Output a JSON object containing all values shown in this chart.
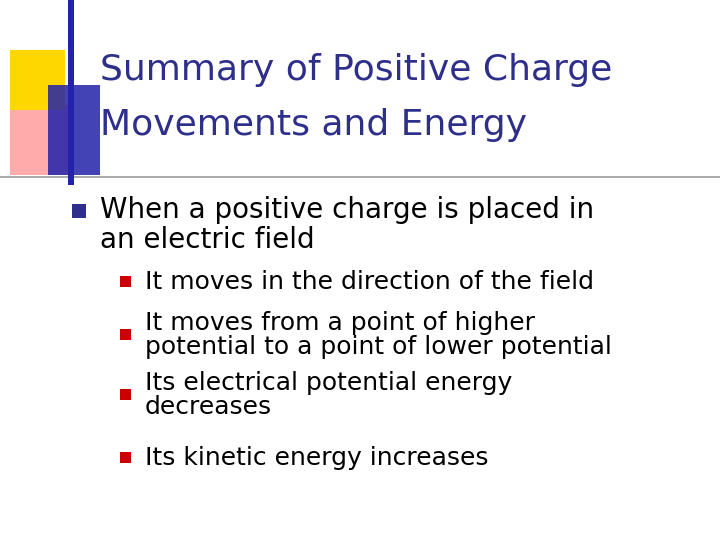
{
  "title_line1": "Summary of Positive Charge",
  "title_line2": "Movements and Energy",
  "title_color": "#2E2E8B",
  "background_color": "#FFFFFF",
  "bullet1_marker_color": "#2E2E8B",
  "bullet1_text_line1": "When a positive charge is placed in",
  "bullet1_text_line2": "an electric field",
  "sub_bullet_color": "#CC0000",
  "sub_bullets": [
    "It moves in the direction of the field",
    "It moves from a point of higher\npotential to a point of lower potential",
    "Its electrical potential energy\ndecreases",
    "Its kinetic energy increases"
  ],
  "decoration_colors": {
    "yellow": "#FFD700",
    "red_pink": "#FF8888",
    "blue": "#2222AA"
  },
  "divider_color": "#999999",
  "body_text_color": "#000000",
  "title_fontsize": 26,
  "bullet1_fontsize": 20,
  "sub_bullet_fontsize": 18
}
